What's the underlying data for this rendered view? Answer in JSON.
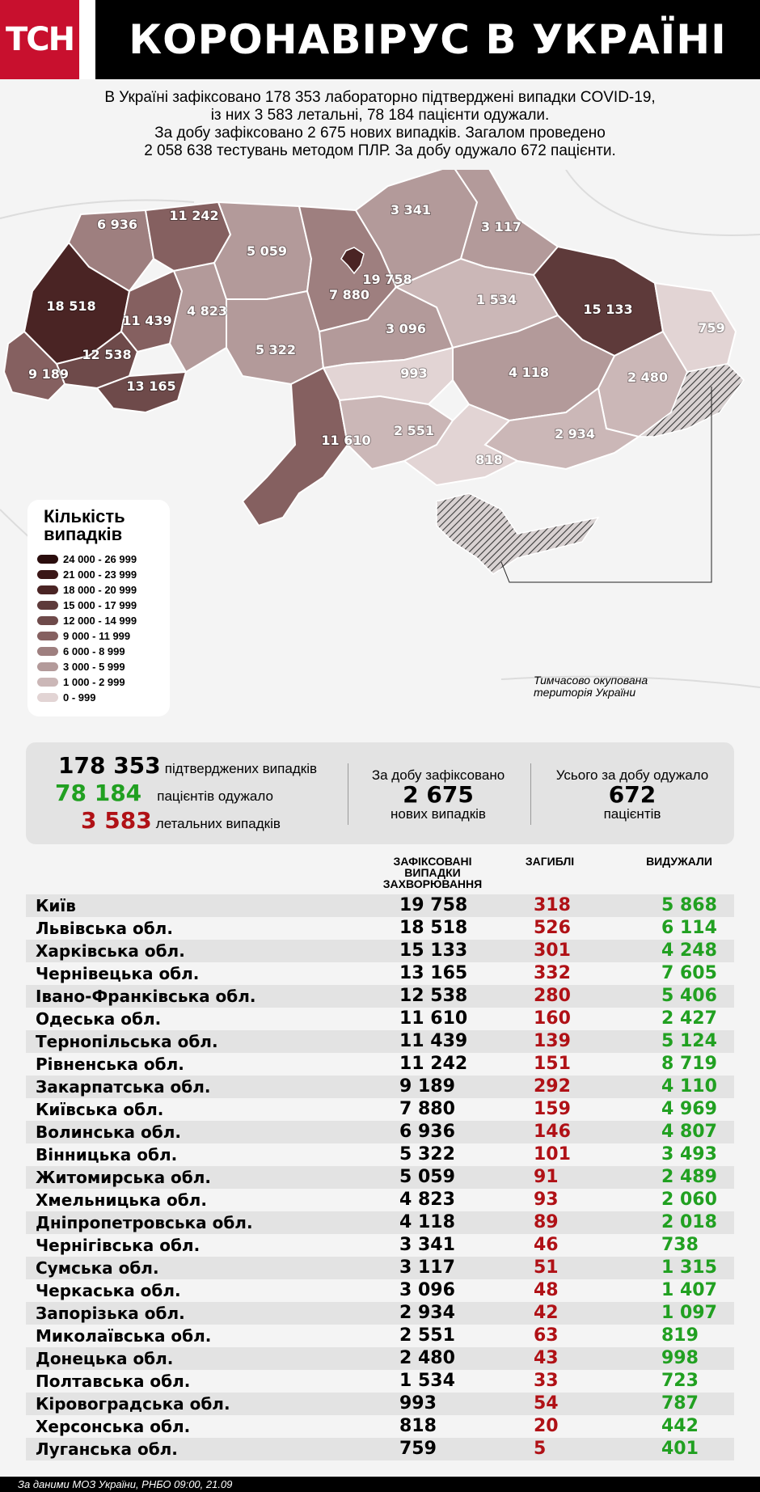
{
  "header": {
    "logo": "ТСН",
    "title": "КОРОНАВІРУС В УКРАЇНІ"
  },
  "intro": [
    "В Україні зафіксовано 178 353 лабораторно підтверджені випадки COVID-19,",
    "із них 3 583 летальні, 78 184 пацієнти одужали.",
    "За добу зафіксовано 2 675 нових випадків. Загалом проведено",
    "2 058 638 тестувань методом ПЛР. За добу одужало 672 пацієнти."
  ],
  "map": {
    "labels": [
      "6 936",
      "11 242",
      "18 518",
      "11 439",
      "12 538",
      "9 189",
      "13 165",
      "4 823",
      "5 059",
      "5 322",
      "7 880",
      "19 758",
      "3 096",
      "3 341",
      "3 117",
      "1 534",
      "15 133",
      "759",
      "2 480",
      "4 118",
      "993",
      "11 610",
      "2 551",
      "818",
      "2 934"
    ],
    "occupied_note": [
      "Тимчасово окупована",
      "територія України"
    ]
  },
  "legend": {
    "title": [
      "Кількість",
      "випадків"
    ],
    "items": [
      {
        "range": "24 000 - 26 999",
        "color": "#2a0d0d"
      },
      {
        "range": "21 000 - 23 999",
        "color": "#3a1616"
      },
      {
        "range": "18 000 - 20 999",
        "color": "#4a2424"
      },
      {
        "range": "15 000 - 17 999",
        "color": "#5e3a3a"
      },
      {
        "range": "12 000 - 14 999",
        "color": "#6e4a4a"
      },
      {
        "range": "9 000 - 11 999",
        "color": "#856060"
      },
      {
        "range": "6 000 - 8 999",
        "color": "#9e7f7f"
      },
      {
        "range": "3 000 - 5 999",
        "color": "#b39a9a"
      },
      {
        "range": "1 000 - 2 999",
        "color": "#cbb7b7"
      },
      {
        "range": "0 - 999",
        "color": "#e2d4d4"
      }
    ]
  },
  "summary": {
    "confirmed": {
      "num": "178 353",
      "text": "підтверджених випадків"
    },
    "recovered": {
      "num": "78 184",
      "text": "пацієнтів одужало"
    },
    "deaths": {
      "num": "3 583",
      "text": "летальних випадків"
    },
    "daily_new": {
      "label": "За добу зафіксовано",
      "num": "2 675",
      "unit": "нових випадків"
    },
    "daily_rec": {
      "label": "Усього за добу одужало",
      "num": "672",
      "unit": "пацієнтів"
    }
  },
  "table": {
    "headers": {
      "cases": [
        "ЗАФІКСОВАНІ",
        "ВИПАДКИ",
        "ЗАХВОРЮВАННЯ"
      ],
      "dead": "ЗАГИБЛІ",
      "recovered": "ВИДУЖАЛИ"
    },
    "rows": [
      {
        "name": "Київ",
        "cases": "19 758",
        "dead": "318",
        "rec": "5 868"
      },
      {
        "name": "Львівська обл.",
        "cases": "18 518",
        "dead": "526",
        "rec": "6 114"
      },
      {
        "name": "Харківська обл.",
        "cases": "15 133",
        "dead": "301",
        "rec": "4 248"
      },
      {
        "name": "Чернівецька обл.",
        "cases": "13 165",
        "dead": "332",
        "rec": "7 605"
      },
      {
        "name": "Івано-Франківська обл.",
        "cases": "12 538",
        "dead": "280",
        "rec": "5 406"
      },
      {
        "name": "Одеська обл.",
        "cases": "11 610",
        "dead": "160",
        "rec": "2 427"
      },
      {
        "name": "Тернопільська обл.",
        "cases": "11 439",
        "dead": "139",
        "rec": "5 124"
      },
      {
        "name": "Рівненська обл.",
        "cases": "11 242",
        "dead": "151",
        "rec": "8 719"
      },
      {
        "name": "Закарпатська обл.",
        "cases": "9 189",
        "dead": "292",
        "rec": "4 110"
      },
      {
        "name": "Київська обл.",
        "cases": "7 880",
        "dead": "159",
        "rec": "4 969"
      },
      {
        "name": "Волинська обл.",
        "cases": "6 936",
        "dead": "146",
        "rec": "4 807"
      },
      {
        "name": "Вінницька обл.",
        "cases": "5 322",
        "dead": "101",
        "rec": "3 493"
      },
      {
        "name": "Житомирська обл.",
        "cases": "5 059",
        "dead": "91",
        "rec": "2 489"
      },
      {
        "name": "Хмельницька обл.",
        "cases": "4 823",
        "dead": "93",
        "rec": "2 060"
      },
      {
        "name": "Дніпропетровська обл.",
        "cases": "4 118",
        "dead": "89",
        "rec": "2 018"
      },
      {
        "name": "Чернігівська обл.",
        "cases": "3 341",
        "dead": "46",
        "rec": "738"
      },
      {
        "name": "Сумська обл.",
        "cases": "3 117",
        "dead": "51",
        "rec": "1 315"
      },
      {
        "name": "Черкаська обл.",
        "cases": "3 096",
        "dead": "48",
        "rec": "1 407"
      },
      {
        "name": "Запорізька обл.",
        "cases": "2 934",
        "dead": "42",
        "rec": "1 097"
      },
      {
        "name": "Миколаївська обл.",
        "cases": "2 551",
        "dead": "63",
        "rec": "819"
      },
      {
        "name": "Донецька обл.",
        "cases": "2 480",
        "dead": "43",
        "rec": "998"
      },
      {
        "name": "Полтавська обл.",
        "cases": "1 534",
        "dead": "33",
        "rec": "723"
      },
      {
        "name": "Кіровоградська обл.",
        "cases": "993",
        "dead": "54",
        "rec": "787"
      },
      {
        "name": "Херсонська обл.",
        "cases": "818",
        "dead": "20",
        "rec": "442"
      },
      {
        "name": "Луганська обл.",
        "cases": "759",
        "dead": "5",
        "rec": "401"
      }
    ]
  },
  "footer": "За даними МОЗ України, РНБО  09:00, 21.09"
}
